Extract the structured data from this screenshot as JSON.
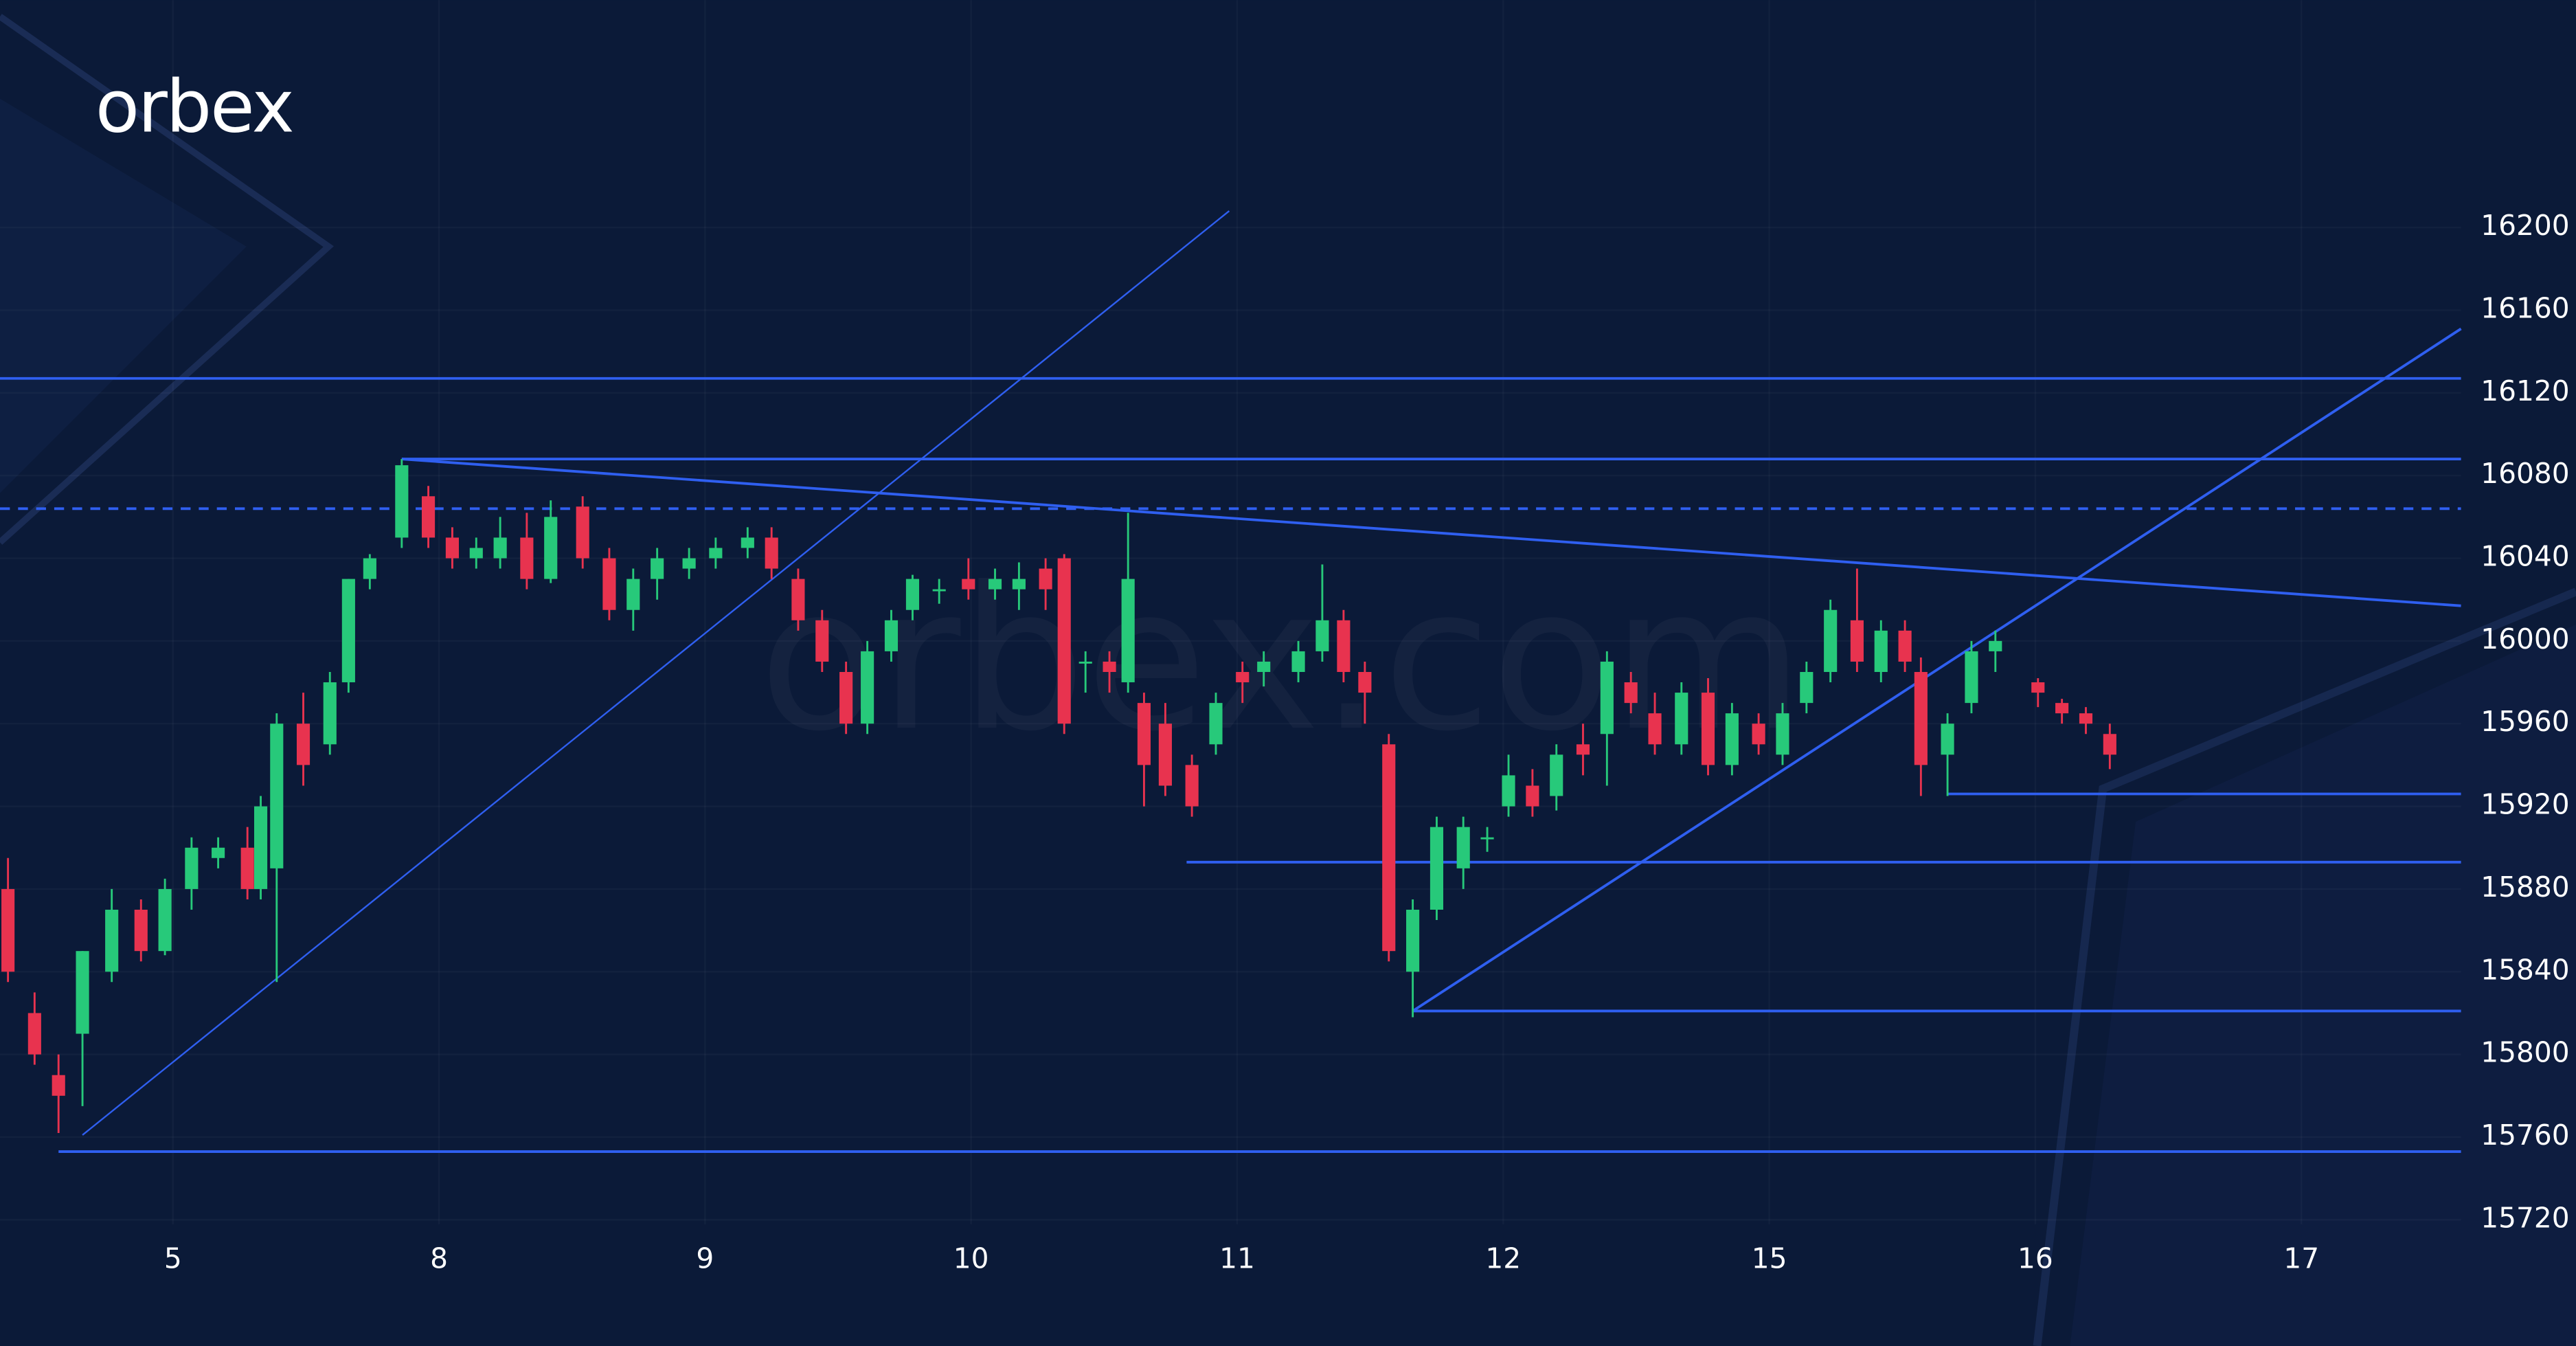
{
  "chart_data": {
    "type": "candlestick",
    "logo": "orbex",
    "watermark": "orbex.com",
    "x": [
      -0.62,
      -0.52,
      -0.43,
      -0.34,
      -0.23,
      -0.12,
      -0.03,
      0.07,
      0.17,
      0.28,
      0.33,
      0.39,
      0.49,
      0.59,
      0.66,
      0.74,
      0.86,
      0.96,
      1.05,
      1.14,
      1.23,
      1.33,
      1.42,
      1.54,
      1.64,
      1.73,
      1.82,
      1.94,
      2.04,
      2.16,
      2.25,
      2.35,
      2.44,
      2.53,
      2.61,
      2.7,
      2.78,
      2.88,
      2.99,
      3.09,
      3.18,
      3.28,
      3.35,
      3.43,
      3.52,
      3.59,
      3.65,
      3.73,
      3.83,
      3.92,
      4.02,
      4.1,
      4.23,
      4.32,
      4.4,
      4.48,
      4.57,
      4.66,
      4.75,
      4.85,
      4.94,
      5.02,
      5.11,
      5.2,
      5.3,
      5.39,
      5.48,
      5.57,
      5.67,
      5.77,
      5.86,
      5.96,
      6.05,
      6.14,
      6.23,
      6.33,
      6.42,
      6.51,
      6.57,
      6.67,
      6.76,
      6.85,
      7.01,
      7.1,
      7.19,
      7.28
    ],
    "open": [
      15880,
      15820,
      15790,
      15810,
      15840,
      15870,
      15850,
      15880,
      15895,
      15900,
      15880,
      15890,
      15960,
      15950,
      15980,
      16030,
      16050,
      16070,
      16050,
      16040,
      16040,
      16050,
      16030,
      16065,
      16040,
      16015,
      16030,
      16035,
      16040,
      16045,
      16050,
      16030,
      16010,
      15985,
      15960,
      15995,
      16015,
      16025,
      16030,
      16025,
      16025,
      16035,
      16040,
      15990,
      15990,
      15980,
      15970,
      15960,
      15940,
      15950,
      15985,
      15985,
      15985,
      15995,
      16010,
      15985,
      15950,
      15840,
      15870,
      15890,
      15905,
      15920,
      15930,
      15925,
      15950,
      15955,
      15980,
      15965,
      15950,
      15975,
      15940,
      15960,
      15945,
      15970,
      15985,
      16010,
      15985,
      16005,
      15985,
      15945,
      15970,
      15995,
      15980,
      15970,
      15965,
      15955
    ],
    "high": [
      15895,
      15830,
      15800,
      15850,
      15880,
      15875,
      15885,
      15905,
      15905,
      15910,
      15925,
      15965,
      15975,
      15985,
      16030,
      16042,
      16088,
      16075,
      16055,
      16050,
      16060,
      16062,
      16068,
      16070,
      16045,
      16035,
      16045,
      16045,
      16050,
      16055,
      16055,
      16035,
      16015,
      15990,
      16000,
      16015,
      16032,
      16030,
      16040,
      16035,
      16038,
      16040,
      16042,
      15995,
      15995,
      16062,
      15975,
      15970,
      15945,
      15975,
      15990,
      15995,
      16000,
      16037,
      16015,
      15990,
      15955,
      15875,
      15915,
      15915,
      15910,
      15945,
      15938,
      15950,
      15960,
      15995,
      15985,
      15975,
      15980,
      15982,
      15970,
      15965,
      15970,
      15990,
      16020,
      16035,
      16010,
      16010,
      15992,
      15965,
      16000,
      16005,
      15982,
      15972,
      15968,
      15960
    ],
    "low": [
      15835,
      15795,
      15762,
      15775,
      15835,
      15845,
      15848,
      15870,
      15890,
      15875,
      15875,
      15835,
      15930,
      15945,
      15975,
      16025,
      16045,
      16045,
      16035,
      16035,
      16035,
      16025,
      16028,
      16035,
      16010,
      16005,
      16020,
      16030,
      16035,
      16040,
      16030,
      16005,
      15985,
      15955,
      15955,
      15990,
      16010,
      16018,
      16020,
      16020,
      16015,
      16015,
      15955,
      15975,
      15975,
      15975,
      15920,
      15925,
      15915,
      15945,
      15970,
      15978,
      15980,
      15990,
      15980,
      15960,
      15845,
      15818,
      15865,
      15880,
      15898,
      15915,
      15915,
      15918,
      15935,
      15930,
      15965,
      15945,
      15945,
      15935,
      15935,
      15945,
      15940,
      15965,
      15980,
      15985,
      15980,
      15985,
      15925,
      15925,
      15965,
      15985,
      15968,
      15960,
      15955,
      15938
    ],
    "close": [
      15840,
      15800,
      15780,
      15850,
      15870,
      15850,
      15880,
      15900,
      15900,
      15880,
      15920,
      15960,
      15940,
      15980,
      16030,
      16040,
      16085,
      16050,
      16040,
      16045,
      16050,
      16030,
      16060,
      16040,
      16015,
      16030,
      16040,
      16040,
      16045,
      16050,
      16035,
      16010,
      15990,
      15960,
      15995,
      16010,
      16030,
      16025,
      16025,
      16030,
      16030,
      16025,
      15960,
      15990,
      15985,
      16030,
      15940,
      15930,
      15920,
      15970,
      15980,
      15990,
      15995,
      16010,
      15985,
      15975,
      15850,
      15870,
      15910,
      15910,
      15905,
      15935,
      15920,
      15945,
      15945,
      15990,
      15970,
      15950,
      15975,
      15940,
      15965,
      15950,
      15965,
      15985,
      16015,
      15990,
      16005,
      15990,
      15940,
      15960,
      15995,
      16000,
      15975,
      15965,
      15960,
      15945
    ],
    "up_color": "#27c97a",
    "down_color": "#e8334f",
    "xlim": [
      -0.65,
      8.6
    ],
    "ylim": [
      15659,
      16310
    ],
    "xticks": [
      {
        "value": 0,
        "label": "5"
      },
      {
        "value": 1,
        "label": "8"
      },
      {
        "value": 2,
        "label": "9"
      },
      {
        "value": 3,
        "label": "10"
      },
      {
        "value": 4,
        "label": "11"
      },
      {
        "value": 5,
        "label": "12"
      },
      {
        "value": 6,
        "label": "15"
      },
      {
        "value": 7,
        "label": "16"
      },
      {
        "value": 8,
        "label": "17"
      }
    ],
    "yticks": [
      15720,
      15760,
      15800,
      15840,
      15880,
      15920,
      15960,
      16000,
      16040,
      16080,
      16120,
      16160,
      16200
    ],
    "grid": true,
    "drawings": [
      {
        "x": [
          -0.65,
          8.6
        ],
        "y": [
          16127,
          16127
        ],
        "style": "solid",
        "color": "#2f5ff0"
      },
      {
        "x": [
          0.86,
          8.6
        ],
        "y": [
          16088,
          16088
        ],
        "style": "solid",
        "color": "#2f5ff0"
      },
      {
        "x": [
          -0.65,
          8.6
        ],
        "y": [
          16064,
          16064
        ],
        "style": "dashed",
        "color": "#2f5ff0"
      },
      {
        "x": [
          6.67,
          8.6
        ],
        "y": [
          15926,
          15926
        ],
        "style": "solid",
        "color": "#2f5ff0"
      },
      {
        "x": [
          3.81,
          8.6
        ],
        "y": [
          15893,
          15893
        ],
        "style": "solid",
        "color": "#2f5ff0"
      },
      {
        "x": [
          4.66,
          8.6
        ],
        "y": [
          15821,
          15821
        ],
        "style": "solid",
        "color": "#2f5ff0"
      },
      {
        "x": [
          -0.43,
          8.6
        ],
        "y": [
          15753,
          15753
        ],
        "style": "solid",
        "color": "#2f5ff0"
      },
      {
        "x": [
          0.86,
          8.6
        ],
        "y": [
          16088,
          16017
        ],
        "style": "solid",
        "color": "#2f5ff0"
      },
      {
        "x": [
          -0.34,
          3.97
        ],
        "y": [
          15761,
          16208
        ],
        "style": "thin",
        "color": "#2f5ff0"
      },
      {
        "x": [
          4.66,
          8.6
        ],
        "y": [
          15821,
          16151
        ],
        "style": "solid",
        "color": "#2f5ff0"
      }
    ]
  }
}
